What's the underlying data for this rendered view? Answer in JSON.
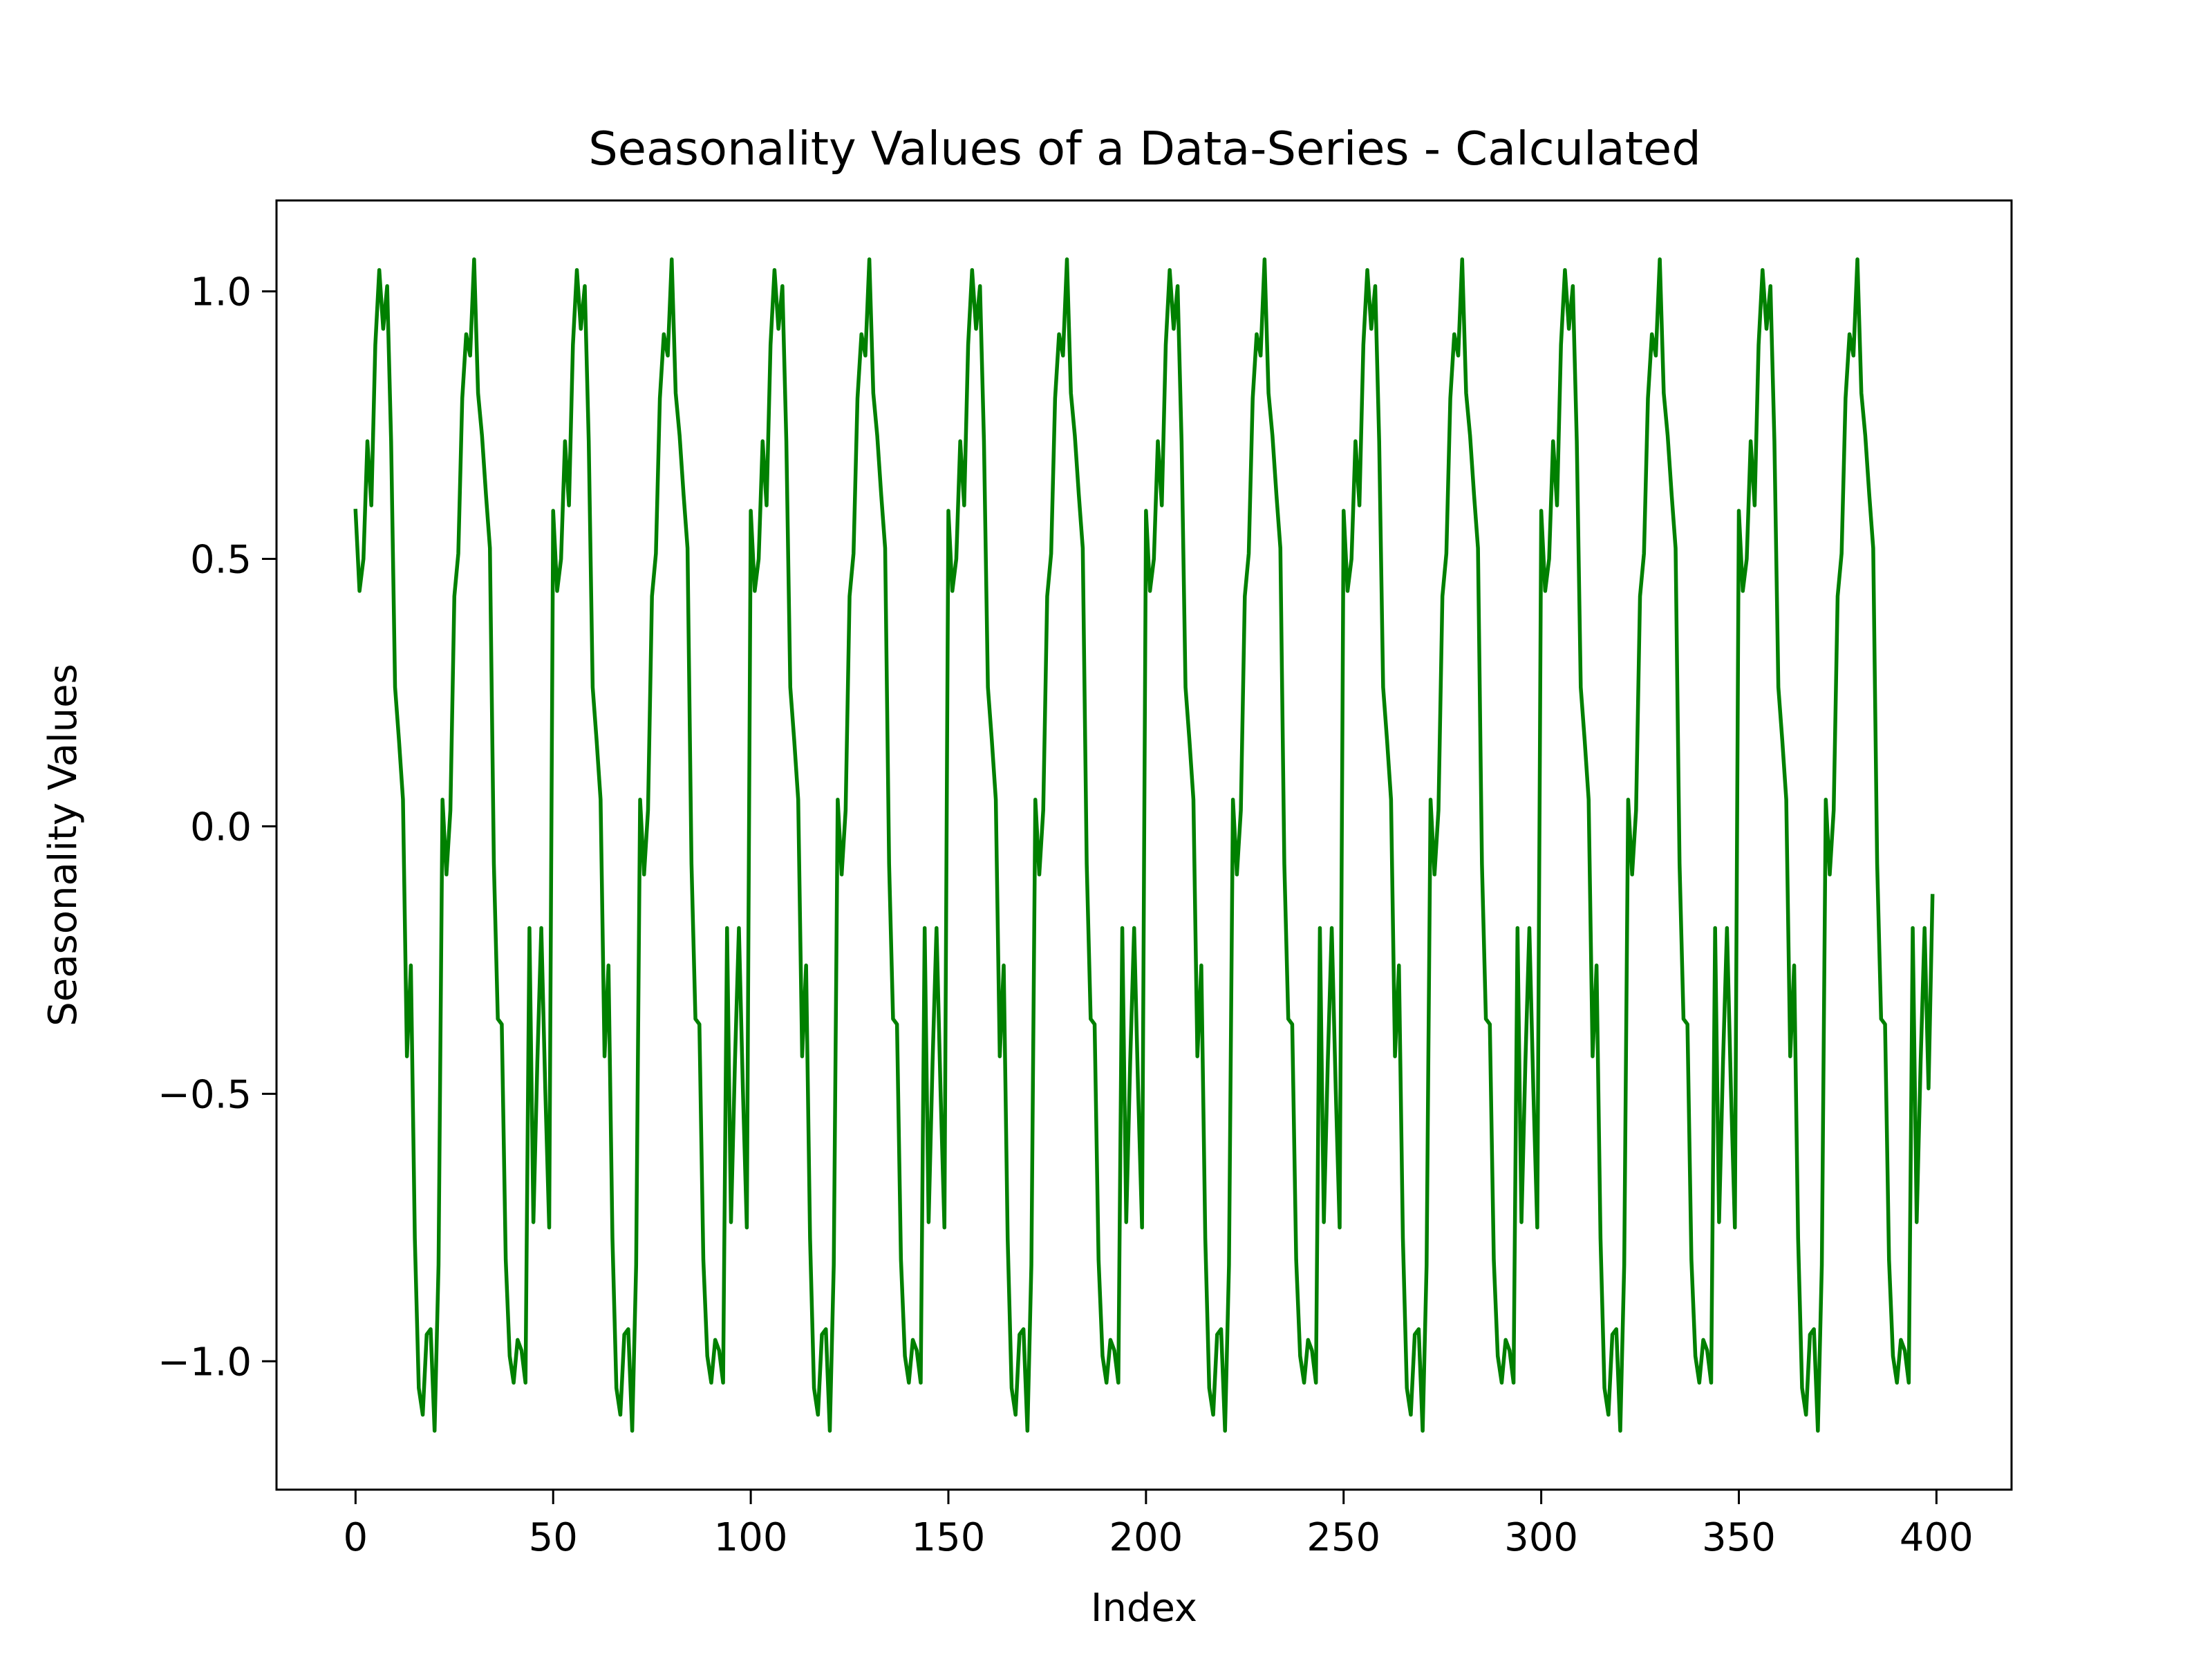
{
  "chart_data": {
    "type": "line",
    "title": "Seasonality Values of a Data-Series - Calculated",
    "xlabel": "Index",
    "ylabel": "Seasonality Values",
    "xlim": [
      -20,
      419
    ],
    "ylim": [
      -1.24,
      1.17
    ],
    "x_ticks": [
      0,
      50,
      100,
      150,
      200,
      250,
      300,
      350,
      400
    ],
    "y_ticks": [
      -1.0,
      -0.5,
      0.0,
      0.5,
      1.0
    ],
    "grid": false,
    "period": 50,
    "x": [
      0,
      399
    ],
    "line_color": "#008000",
    "season": [
      0.59,
      0.44,
      0.5,
      0.72,
      0.6,
      0.9,
      1.04,
      0.93,
      1.01,
      0.72,
      0.26,
      0.16,
      0.05,
      -0.43,
      -0.26,
      -0.77,
      -1.05,
      -1.1,
      -0.95,
      -0.94,
      -1.13,
      -0.82,
      0.05,
      -0.09,
      0.03,
      0.43,
      0.51,
      0.8,
      0.92,
      0.88,
      1.06,
      0.81,
      0.73,
      0.62,
      0.52,
      -0.07,
      -0.36,
      -0.37,
      -0.81,
      -0.99,
      -1.04,
      -0.96,
      -0.98,
      -1.04,
      -0.19,
      -0.74,
      -0.44,
      -0.19,
      -0.49,
      -0.75
    ],
    "last_value": -0.13
  }
}
